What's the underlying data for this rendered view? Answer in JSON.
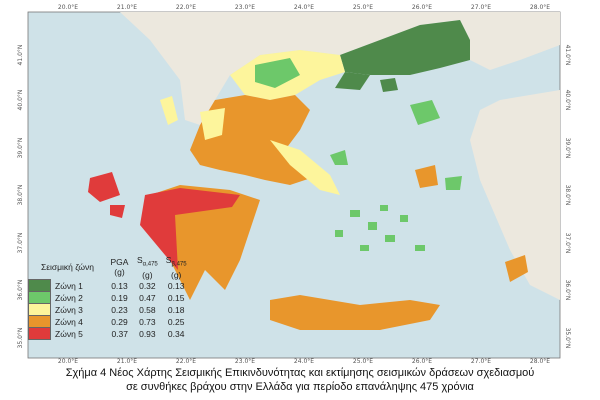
{
  "map": {
    "colors": {
      "sea": "#cfe2e8",
      "land": "#ece8de",
      "zone1": "#4f8a4b",
      "zone2": "#6dc86a",
      "zone3": "#fdf59c",
      "zone4": "#e8962c",
      "zone5": "#e03b3b"
    },
    "lon_labels": [
      "20.0°E",
      "21.0°E",
      "22.0°E",
      "23.0°E",
      "24.0°E",
      "25.0°E",
      "26.0°E",
      "27.0°E",
      "28.0°E"
    ],
    "lat_labels": [
      "41.0°N",
      "40.0°N",
      "39.0°N",
      "38.0°N",
      "37.0°N",
      "36.0°N",
      "35.0°N"
    ]
  },
  "legend": {
    "header_zone": "Σεισμική ζώνη",
    "header_pga": "PGA",
    "header_sa": "S",
    "header_sa_sub": "α,475",
    "header_sb": "S",
    "header_sb_sub": "β,475",
    "unit": "(g)",
    "rows": [
      {
        "label": "Ζώνη 1",
        "pga": "0.13",
        "sa": "0.32",
        "sb": "0.13",
        "color": "#4f8a4b"
      },
      {
        "label": "Ζώνη 2",
        "pga": "0.19",
        "sa": "0.47",
        "sb": "0.15",
        "color": "#6dc86a"
      },
      {
        "label": "Ζώνη 3",
        "pga": "0.23",
        "sa": "0.58",
        "sb": "0.18",
        "color": "#fdf59c"
      },
      {
        "label": "Ζώνη 4",
        "pga": "0.29",
        "sa": "0.73",
        "sb": "0.25",
        "color": "#e8962c"
      },
      {
        "label": "Ζώνη 5",
        "pga": "0.37",
        "sa": "0.93",
        "sb": "0.34",
        "color": "#e03b3b"
      }
    ]
  },
  "caption": {
    "line1": "Σχήμα 4 Νέος Χάρτης Σεισμικής Επικινδυνότητας και εκτίμησης σεισμικών δράσεων σχεδιασμού",
    "line2": "σε συνθήκες βράχου στην Ελλάδα για περίοδο επανάληψης 475 χρόνια"
  }
}
